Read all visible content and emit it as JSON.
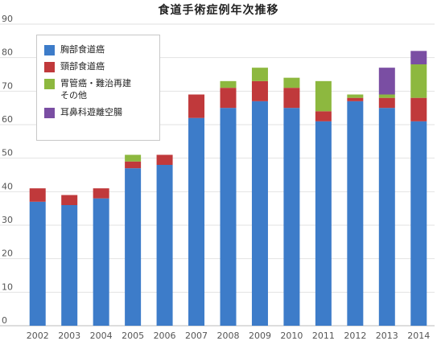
{
  "chart_data": {
    "type": "bar",
    "stacked": true,
    "title": "食道手術症例年次推移",
    "xlabel": "",
    "ylabel": "",
    "ylim": [
      0,
      90
    ],
    "yticks": [
      0,
      10,
      20,
      30,
      40,
      50,
      60,
      70,
      80,
      90
    ],
    "grid": true,
    "legend_position": "top-left",
    "categories": [
      "2002",
      "2003",
      "2004",
      "2005",
      "2006",
      "2007",
      "2008",
      "2009",
      "2010",
      "2011",
      "2012",
      "2013",
      "2014"
    ],
    "series": [
      {
        "name": "胸部食道癌",
        "color": "#3d7cc9",
        "values": [
          37,
          36,
          38,
          47,
          48,
          62,
          65,
          67,
          65,
          61,
          67,
          65,
          61
        ]
      },
      {
        "name": "頸部食道癌",
        "color": "#c0393b",
        "values": [
          4,
          3,
          3,
          2,
          3,
          7,
          6,
          6,
          6,
          3,
          1,
          3,
          7
        ]
      },
      {
        "name": "胃管癌・難治再建\nその他",
        "color": "#8db83f",
        "values": [
          0,
          0,
          0,
          2,
          0,
          0,
          2,
          4,
          3,
          9,
          1,
          1,
          10
        ]
      },
      {
        "name": "耳鼻科遊離空腸",
        "color": "#7a4ea3",
        "values": [
          0,
          0,
          0,
          0,
          0,
          0,
          0,
          0,
          0,
          0,
          0,
          8,
          4
        ]
      }
    ]
  }
}
